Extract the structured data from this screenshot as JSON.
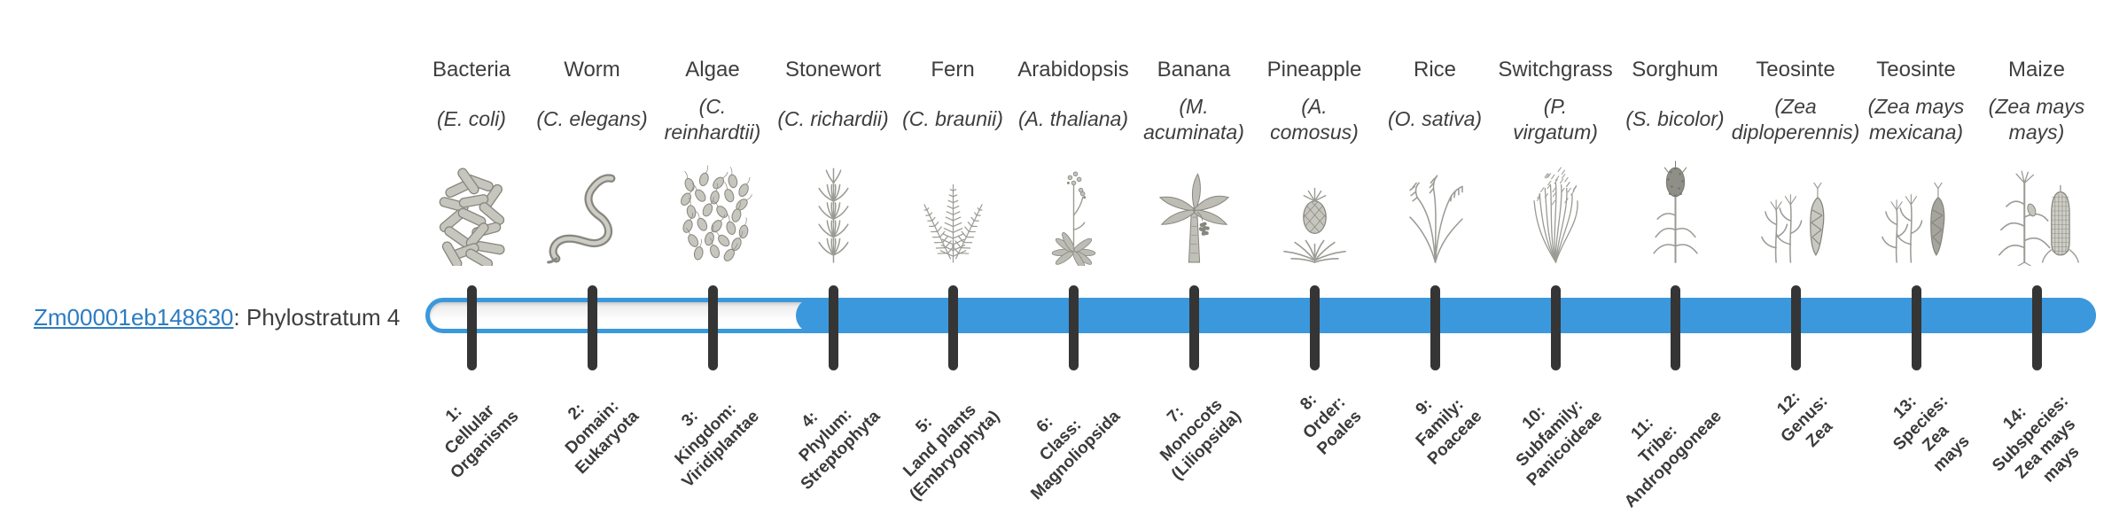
{
  "gene": {
    "id": "Zm00001eb148630",
    "annotation": ": Phylostratum 4"
  },
  "colors": {
    "bar_blue": "#3b98dc",
    "tick_dark": "#353535",
    "link_blue": "#2d7cc1"
  },
  "timeline": {
    "total_strata": 14,
    "highlighted_from_stratum": 4
  },
  "organisms": [
    {
      "common": "Bacteria",
      "sci": "(E. coli)",
      "icon": "bacteria-icon"
    },
    {
      "common": "Worm",
      "sci": "(C. elegans)",
      "icon": "worm-icon"
    },
    {
      "common": "Algae",
      "sci": "(C.\nreinhardtii)",
      "icon": "algae-icon"
    },
    {
      "common": "Stonewort",
      "sci": "(C. richardii)",
      "icon": "stonewort-icon"
    },
    {
      "common": "Fern",
      "sci": "(C. braunii)",
      "icon": "fern-icon"
    },
    {
      "common": "Arabidopsis",
      "sci": "(A. thaliana)",
      "icon": "arabidopsis-icon"
    },
    {
      "common": "Banana",
      "sci": "(M.\nacuminata)",
      "icon": "banana-icon"
    },
    {
      "common": "Pineapple",
      "sci": "(A.\ncomosus)",
      "icon": "pineapple-icon"
    },
    {
      "common": "Rice",
      "sci": "(O. sativa)",
      "icon": "rice-icon"
    },
    {
      "common": "Switchgrass",
      "sci": "(P.\nvirgatum)",
      "icon": "switchgrass-icon"
    },
    {
      "common": "Sorghum",
      "sci": "(S. bicolor)",
      "icon": "sorghum-icon"
    },
    {
      "common": "Teosinte",
      "sci": "(Zea\ndiploperennis)",
      "icon": "teosinte-diploperennis-icon"
    },
    {
      "common": "Teosinte",
      "sci": "(Zea mays\nmexicana)",
      "icon": "teosinte-mexicana-icon"
    },
    {
      "common": "Maize",
      "sci": "(Zea mays\nmays)",
      "icon": "maize-icon"
    }
  ],
  "strata": [
    {
      "label": "1:\nCellular\nOrganisms"
    },
    {
      "label": "2:\nDomain:\nEukaryota"
    },
    {
      "label": "3:\nKingdom:\nViridiplantae"
    },
    {
      "label": "4:\nPhylum:\nStreptophyta"
    },
    {
      "label": "5:\nLand plants\n(Embryophyta)"
    },
    {
      "label": "6:\nClass:\nMagnoliopsida"
    },
    {
      "label": "7:\nMonocots\n(Liliopsida)"
    },
    {
      "label": "8:\nOrder:\nPoales"
    },
    {
      "label": "9:\nFamily:\nPoaceae"
    },
    {
      "label": "10:\nSubfamily:\nPanicoideae"
    },
    {
      "label": "11:\nTribe:\nAndropogoneae"
    },
    {
      "label": "12:\nGenus:\nZea"
    },
    {
      "label": "13:\nSpecies:\nZea\nmays"
    },
    {
      "label": "14:\nSubspecies:\nZea mays\nmays"
    }
  ]
}
